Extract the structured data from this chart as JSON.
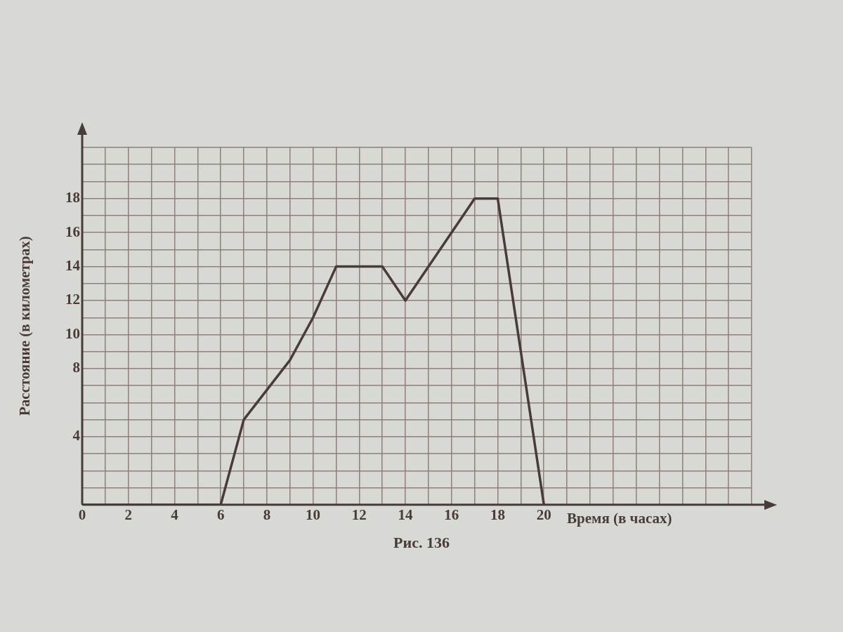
{
  "chart_data": {
    "type": "line",
    "xlabel": "Время (в часах)",
    "ylabel": "Расстояние (в километрах)",
    "annotations": [
      "Рис. 136"
    ],
    "series": [
      {
        "color": "#4a3b3b",
        "x": [
          0,
          6,
          7,
          9,
          10,
          11,
          13,
          14,
          17,
          18,
          20
        ],
        "values": [
          0,
          0,
          5,
          8.5,
          11,
          14,
          14,
          12,
          18,
          18,
          0
        ]
      }
    ],
    "xlim": [
      0,
      29
    ],
    "xticks": [
      0,
      {
        "value": 1,
        "label": null
      },
      2,
      {
        "value": 3,
        "label": null
      },
      4,
      {
        "value": 5,
        "label": null
      },
      6,
      {
        "value": 7,
        "label": null
      },
      8,
      {
        "value": 9,
        "label": null
      },
      10,
      {
        "value": 11,
        "label": null
      },
      12,
      {
        "value": 13,
        "label": null
      },
      14,
      {
        "value": 15,
        "label": null
      },
      16,
      {
        "value": 17,
        "label": null
      },
      18,
      {
        "value": 19,
        "label": null
      },
      20,
      {
        "value": 21,
        "label": null
      },
      {
        "value": 22,
        "label": null
      },
      {
        "value": 23,
        "label": null
      },
      {
        "value": 24,
        "label": null
      },
      {
        "value": 25,
        "label": null
      },
      {
        "value": 26,
        "label": null
      },
      {
        "value": 27,
        "label": null
      },
      {
        "value": 28,
        "label": null
      },
      {
        "value": 29,
        "label": null
      }
    ],
    "ylim": [
      0,
      21
    ],
    "yticks": [
      {
        "value": 0,
        "label": null
      },
      {
        "value": 1,
        "label": null
      },
      {
        "value": 2,
        "label": null
      },
      {
        "value": 3,
        "label": null
      },
      4,
      {
        "value": 5,
        "label": null
      },
      {
        "value": 6,
        "label": null
      },
      {
        "value": 7,
        "label": null
      },
      8,
      {
        "value": 9,
        "label": null
      },
      10,
      {
        "value": 11,
        "label": null
      },
      12,
      {
        "value": 13,
        "label": null
      },
      14,
      {
        "value": 15,
        "label": null
      },
      16,
      {
        "value": 17,
        "label": null
      },
      18,
      {
        "value": 19,
        "label": null
      },
      {
        "value": 20,
        "label": null
      },
      {
        "value": 21,
        "label": null
      }
    ],
    "grid": true,
    "legend": false,
    "marker": "none",
    "line_style": "solid"
  }
}
